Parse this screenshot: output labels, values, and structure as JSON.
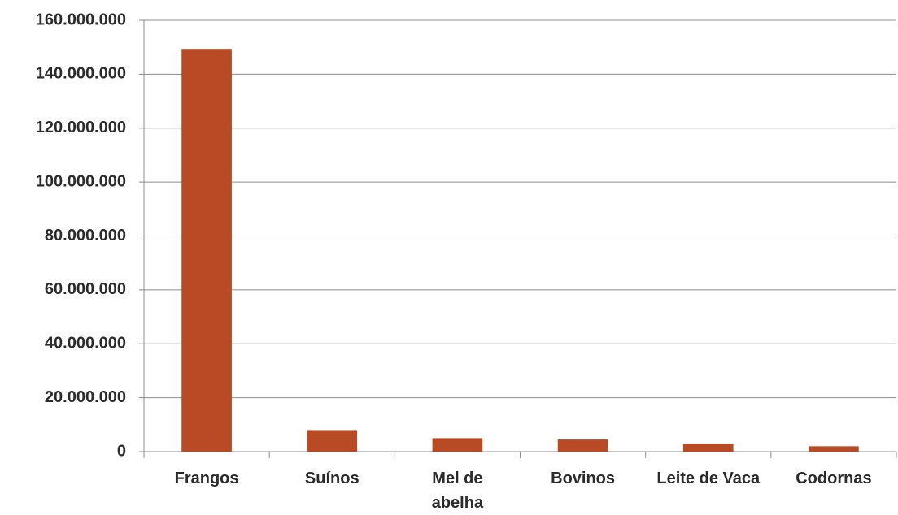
{
  "chart_data": {
    "type": "bar",
    "categories": [
      "Frangos",
      "Suínos",
      "Mel de\nabelha",
      "Bovinos",
      "Leite de Vaca",
      "Codornas"
    ],
    "values": [
      149400000,
      8000000,
      5000000,
      4500000,
      3000000,
      2000000
    ],
    "color": "#b84a26",
    "ylim": [
      0,
      160000000
    ],
    "yticks": [
      0,
      {
        "value": 20000000,
        "label": "20.000.000"
      },
      {
        "value": 40000000,
        "label": "40.000.000"
      },
      {
        "value": 60000000,
        "label": "60.000.000"
      },
      {
        "value": 80000000,
        "label": "80.000.000"
      },
      {
        "value": 100000000,
        "label": "100.000.000"
      },
      {
        "value": 120000000,
        "label": "120.000.000"
      },
      {
        "value": 140000000,
        "label": "140.000.000"
      },
      {
        "value": 160000000,
        "label": "160.000.000"
      }
    ],
    "grid": true
  }
}
